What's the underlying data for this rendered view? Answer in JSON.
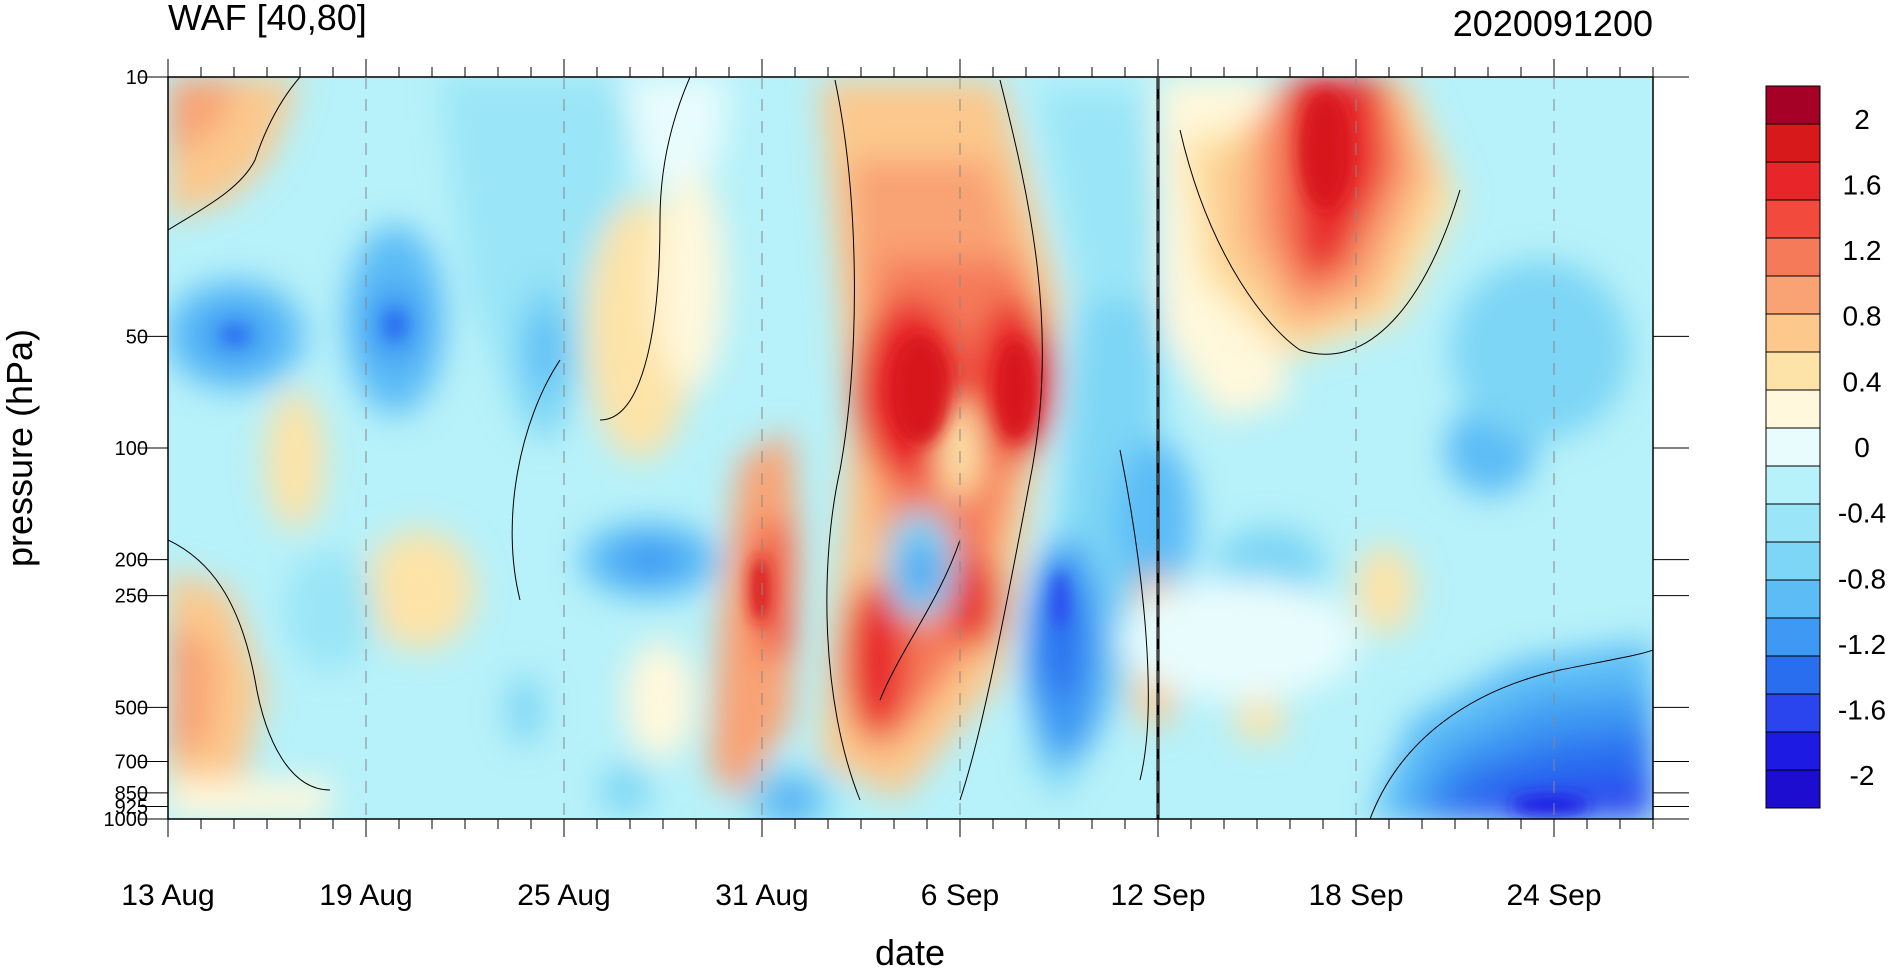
{
  "chart_data": {
    "type": "heatmap",
    "title_left": "WAF [40,80]",
    "title_right": "2020091200",
    "xlabel": "date",
    "ylabel": "pressure (hPa)",
    "x_tick_labels": [
      "13 Aug",
      "19 Aug",
      "25 Aug",
      "31 Aug",
      "6 Sep",
      "12 Sep",
      "18 Sep",
      "24 Sep"
    ],
    "x_range": [
      "13 Aug",
      "27 Sep"
    ],
    "y_tick_labels": [
      "10",
      "50",
      "100",
      "200",
      "250",
      "500",
      "700",
      "850",
      "925",
      "1000"
    ],
    "y_ticks": [
      10,
      50,
      100,
      200,
      250,
      500,
      700,
      850,
      925,
      1000
    ],
    "y_scale": "log",
    "y_range": [
      1000,
      10
    ],
    "marker_date": "12 Sep",
    "colorbar": {
      "tick_labels": [
        "2",
        "1.6",
        "1.2",
        "0.8",
        "0.4",
        "0",
        "-0.4",
        "-0.8",
        "-1.2",
        "-1.6",
        "-2"
      ],
      "colors": [
        "#a50026",
        "#d7191c",
        "#e8262a",
        "#f24a3d",
        "#f57a5a",
        "#f9a273",
        "#fcc88c",
        "#fde3a7",
        "#fff8dc",
        "#e8fcfd",
        "#b7f1f9",
        "#9ae5f7",
        "#7dd6f5",
        "#5cbcf6",
        "#3d99f3",
        "#2a6ef0",
        "#2a44ee",
        "#1d1be3",
        "#1c0dd0"
      ],
      "range": [
        -2.2,
        2.2
      ]
    },
    "regions": [
      {
        "name": "13-19 Aug upper blue",
        "value": -0.6
      },
      {
        "name": "6 Sep upper red core",
        "value": 1.7
      },
      {
        "name": "16-18 Sep upper red core",
        "value": 1.7
      },
      {
        "name": "8-9 Sep lower blue core",
        "value": -1.8
      },
      {
        "name": "24-27 Sep near-surface blue",
        "value": -2.0
      },
      {
        "name": "31 Aug 250 hPa red",
        "value": 1.2
      },
      {
        "name": "13 Aug 500 hPa orange",
        "value": 0.6
      }
    ]
  }
}
